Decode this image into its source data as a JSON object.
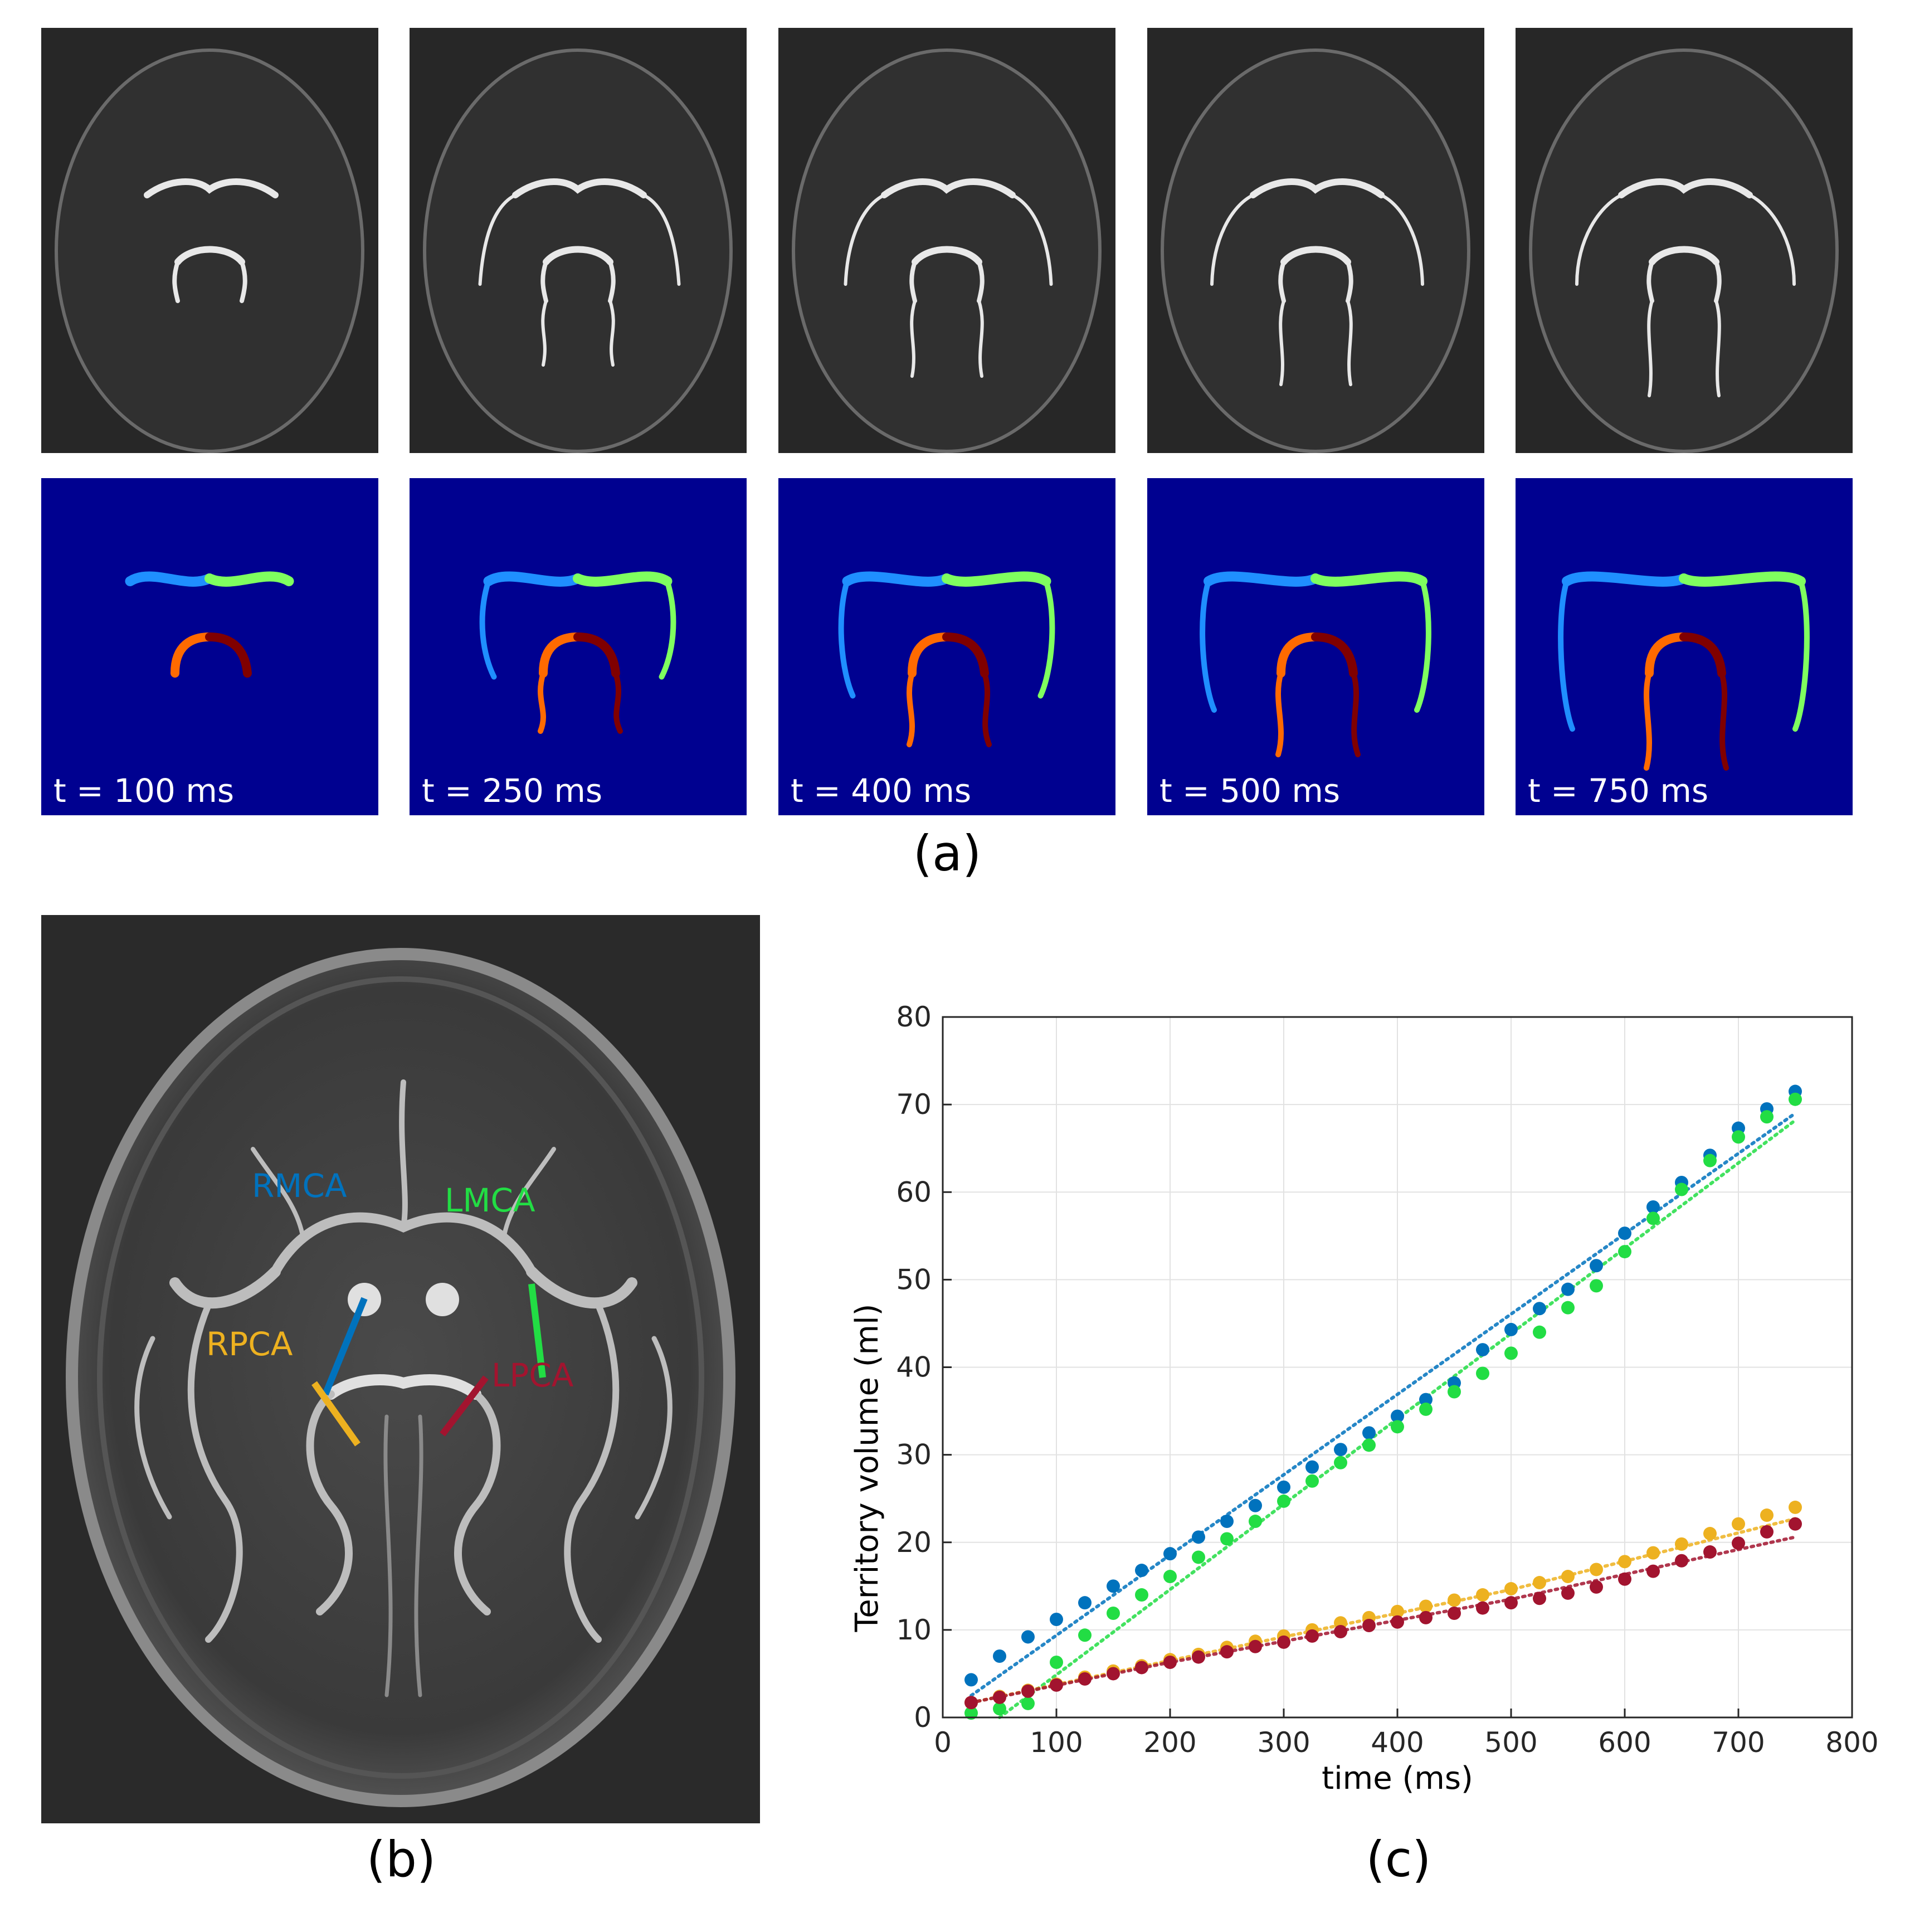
{
  "panel_a": {
    "caption": "(a)",
    "frames": [
      {
        "time_label": "t = 100 ms",
        "extent": 0.25
      },
      {
        "time_label": "t = 250 ms",
        "extent": 0.45
      },
      {
        "time_label": "t = 400 ms",
        "extent": 0.65
      },
      {
        "time_label": "t = 500 ms",
        "extent": 0.8
      },
      {
        "time_label": "t = 750 ms",
        "extent": 1.0
      }
    ]
  },
  "panel_b": {
    "caption": "(b)",
    "labels": {
      "rmca": "RMCA",
      "lmca": "LMCA",
      "rpca": "RPCA",
      "lpca": "LPCA"
    }
  },
  "colors": {
    "rmca": "#0072bd",
    "lmca": "#22dd44",
    "rpca": "#edb120",
    "lpca": "#a2142f",
    "seg_rmca": "#1f8fff",
    "seg_lmca": "#7fff5f",
    "seg_rpca": "#ff6a00",
    "seg_lpca": "#800000",
    "seg_background": "#000190"
  },
  "panel_c": {
    "caption": "(c)"
  },
  "chart_data": {
    "type": "scatter",
    "xlabel": "time (ms)",
    "ylabel": "Territory volume (ml)",
    "xlim": [
      0,
      800
    ],
    "ylim": [
      0,
      80
    ],
    "xticks": [
      0,
      100,
      200,
      300,
      400,
      500,
      600,
      700,
      800
    ],
    "yticks": [
      0,
      10,
      20,
      30,
      40,
      50,
      60,
      70,
      80
    ],
    "grid": true,
    "x": [
      25,
      50,
      75,
      100,
      125,
      150,
      175,
      200,
      225,
      250,
      275,
      300,
      325,
      350,
      375,
      400,
      425,
      450,
      475,
      500,
      525,
      550,
      575,
      600,
      625,
      650,
      675,
      700,
      725,
      750
    ],
    "series": [
      {
        "key": "rmca",
        "values": [
          4.3,
          7.0,
          9.2,
          11.2,
          13.1,
          15.0,
          16.8,
          18.7,
          20.6,
          22.4,
          24.2,
          26.3,
          28.6,
          30.6,
          32.5,
          34.4,
          36.3,
          38.2,
          42.0,
          44.3,
          46.7,
          48.9,
          51.6,
          55.3,
          58.3,
          61.1,
          64.2,
          67.3,
          69.5,
          71.5
        ],
        "fit": [
          [
            25,
            2.5
          ],
          [
            750,
            69.0
          ]
        ]
      },
      {
        "key": "lmca",
        "values": [
          0.5,
          1.0,
          1.6,
          6.3,
          9.4,
          11.9,
          14.0,
          16.1,
          18.3,
          20.4,
          22.4,
          24.7,
          27.0,
          29.1,
          31.1,
          33.2,
          35.2,
          37.2,
          39.3,
          41.6,
          44.0,
          46.8,
          49.3,
          53.2,
          57.0,
          60.3,
          63.6,
          66.3,
          68.6,
          70.6
        ],
        "fit": [
          [
            50,
            0.0
          ],
          [
            750,
            68.2
          ]
        ]
      },
      {
        "key": "rpca",
        "values": [
          1.7,
          2.4,
          3.1,
          3.8,
          4.6,
          5.3,
          5.9,
          6.6,
          7.2,
          8.0,
          8.7,
          9.3,
          10.0,
          10.8,
          11.4,
          12.1,
          12.7,
          13.4,
          14.0,
          14.7,
          15.4,
          16.1,
          16.9,
          17.8,
          18.8,
          19.8,
          21.0,
          22.1,
          23.1,
          24.0
        ],
        "fit": [
          [
            25,
            1.7
          ],
          [
            200,
            6.5
          ],
          [
            500,
            14.6
          ],
          [
            750,
            22.7
          ]
        ]
      },
      {
        "key": "lpca",
        "values": [
          1.7,
          2.3,
          3.0,
          3.7,
          4.4,
          5.0,
          5.7,
          6.3,
          6.9,
          7.5,
          8.1,
          8.6,
          9.3,
          9.8,
          10.5,
          10.9,
          11.4,
          11.9,
          12.5,
          13.1,
          13.6,
          14.2,
          14.9,
          15.8,
          16.7,
          17.9,
          18.9,
          19.9,
          21.2,
          22.1
        ],
        "fit": [
          [
            25,
            1.7
          ],
          [
            200,
            6.3
          ],
          [
            500,
            13.5
          ],
          [
            750,
            20.6
          ]
        ]
      }
    ]
  }
}
